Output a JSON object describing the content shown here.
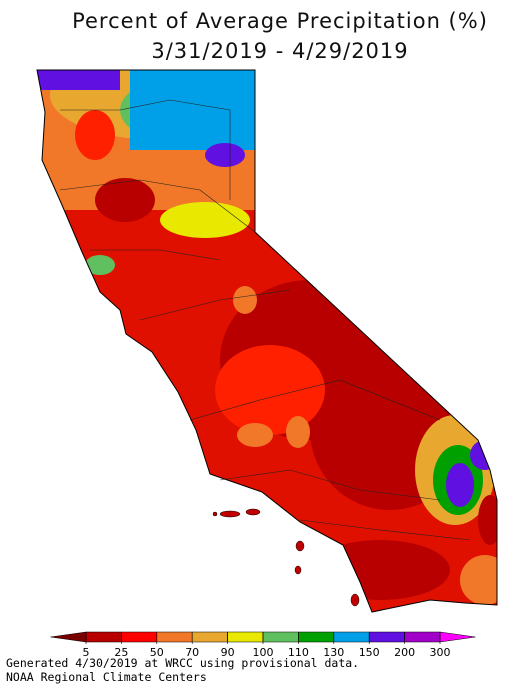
{
  "title": "Percent of Average Precipitation (%)",
  "subtitle": "3/31/2019 - 4/29/2019",
  "legend": {
    "ticks": [
      5,
      25,
      50,
      70,
      90,
      100,
      110,
      130,
      150,
      200,
      300
    ],
    "colors": [
      "#7a0000",
      "#b80000",
      "#ff0000",
      "#f07828",
      "#e8a830",
      "#e8e800",
      "#60c060",
      "#00a000",
      "#00a0e8",
      "#6010e0",
      "#a000c8",
      "#ff00ff"
    ]
  },
  "footer": [
    "Generated 4/30/2019 at WRCC using provisional data.",
    "NOAA Regional Climate Centers"
  ]
}
